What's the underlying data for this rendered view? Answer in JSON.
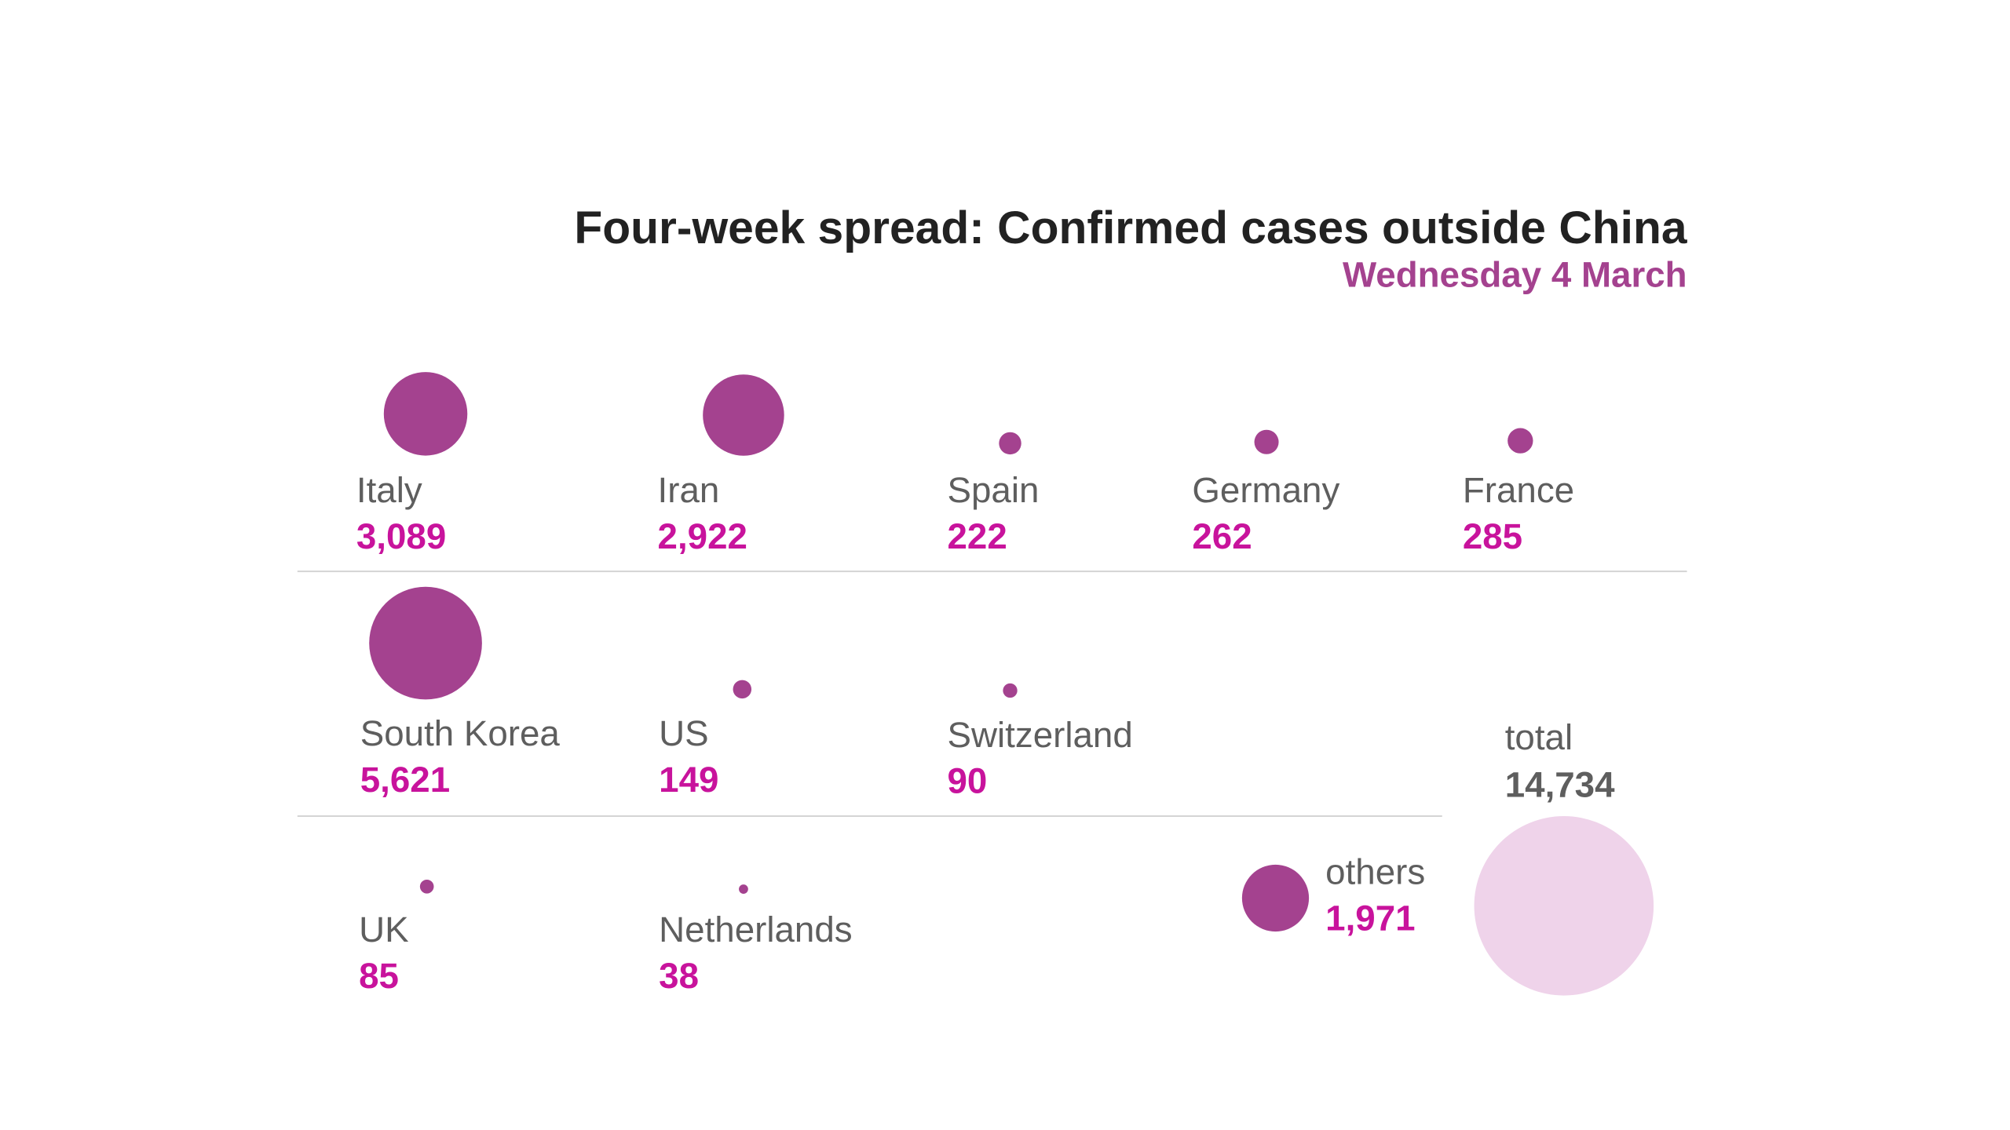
{
  "chart_data": {
    "type": "bubble",
    "title": "Four-week spread: Confirmed cases outside China",
    "subtitle": "Wednesday 4 March",
    "colors": {
      "bubble": "#a4428f",
      "value_text": "#c8139c",
      "total_bubble": "#efd3ea"
    },
    "items": [
      {
        "name": "Italy",
        "value": 3089,
        "label": "3,089"
      },
      {
        "name": "Iran",
        "value": 2922,
        "label": "2,922"
      },
      {
        "name": "Spain",
        "value": 222,
        "label": "222"
      },
      {
        "name": "Germany",
        "value": 262,
        "label": "262"
      },
      {
        "name": "France",
        "value": 285,
        "label": "285"
      },
      {
        "name": "South Korea",
        "value": 5621,
        "label": "5,621"
      },
      {
        "name": "US",
        "value": 149,
        "label": "149"
      },
      {
        "name": "Switzerland",
        "value": 90,
        "label": "90"
      },
      {
        "name": "UK",
        "value": 85,
        "label": "85"
      },
      {
        "name": "Netherlands",
        "value": 38,
        "label": "38"
      },
      {
        "name": "others",
        "value": 1971,
        "label": "1,971"
      }
    ],
    "total": {
      "name": "total",
      "value": 14734,
      "label": "14,734"
    }
  }
}
